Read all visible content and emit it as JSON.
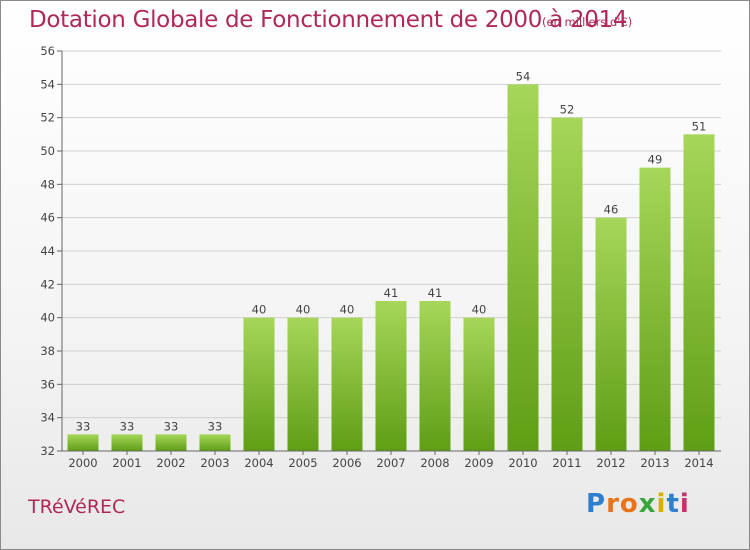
{
  "title": "Dotation Globale de Fonctionnement de 2000 à 2014",
  "subtitle": "(en milliers d'€)",
  "commune": "TRéVéREC",
  "logo": {
    "letters": [
      "P",
      "r",
      "o",
      "x",
      "i",
      "t",
      "i"
    ],
    "colors": [
      "#2f7fd0",
      "#e8731a",
      "#e8731a",
      "#3aa63a",
      "#d8b000",
      "#2f7fd0",
      "#c8306a"
    ]
  },
  "colors": {
    "title": "#b0285a",
    "bar_top": "#a6d65a",
    "bar_bottom": "#5f9e14",
    "grid": "#d0d0d0",
    "axis": "#666666"
  },
  "chart_data": {
    "type": "bar",
    "categories": [
      "2000",
      "2001",
      "2002",
      "2003",
      "2004",
      "2005",
      "2006",
      "2007",
      "2008",
      "2009",
      "2010",
      "2011",
      "2012",
      "2013",
      "2014"
    ],
    "values": [
      33,
      33,
      33,
      33,
      40,
      40,
      40,
      41,
      41,
      40,
      54,
      52,
      46,
      49,
      51
    ],
    "yticks": [
      32,
      34,
      36,
      38,
      40,
      42,
      44,
      46,
      48,
      50,
      52,
      54,
      56
    ],
    "ylim": [
      32,
      56
    ],
    "grid": true,
    "legend": "none"
  }
}
